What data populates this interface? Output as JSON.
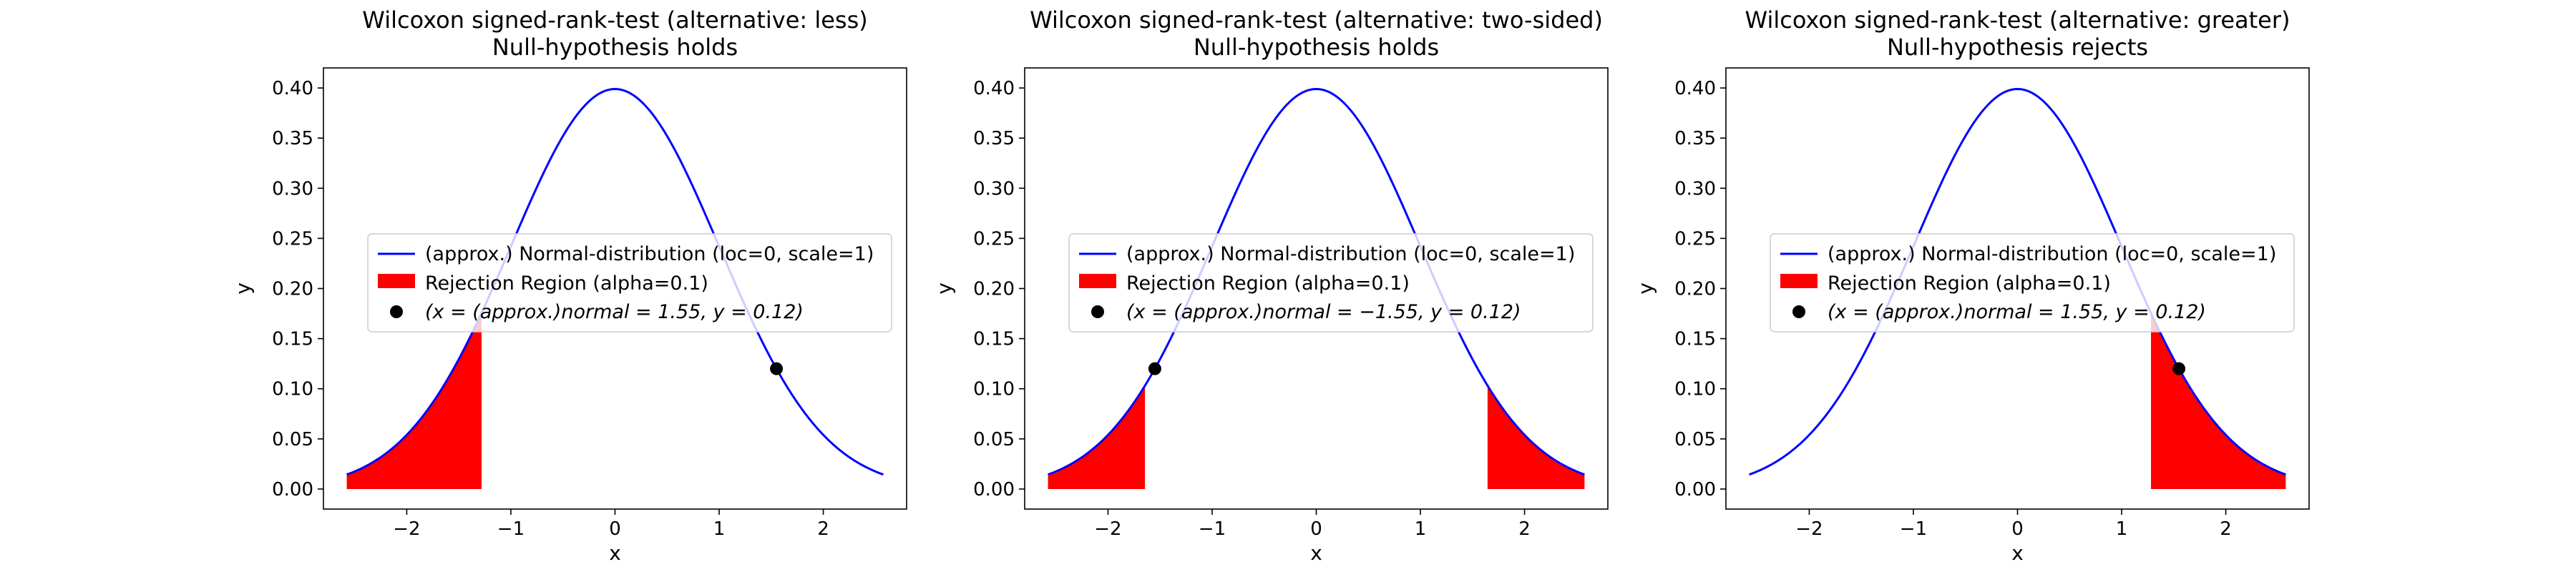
{
  "chart_data": [
    {
      "type": "line",
      "title": "Wilcoxon signed-rank-test (alternative: less)",
      "subtitle": "Null-hypothesis holds",
      "xlabel": "x",
      "ylabel": "y",
      "xlim": [
        -2.8,
        2.8
      ],
      "ylim": [
        -0.02,
        0.42
      ],
      "xticks": [
        -2,
        -1,
        0,
        1,
        2
      ],
      "xtick_labels": [
        "−2",
        "−1",
        "0",
        "1",
        "2"
      ],
      "yticks": [
        0.0,
        0.05,
        0.1,
        0.15,
        0.2,
        0.25,
        0.3,
        0.35,
        0.4
      ],
      "ytick_labels": [
        "0.00",
        "0.05",
        "0.10",
        "0.15",
        "0.20",
        "0.25",
        "0.30",
        "0.35",
        "0.40"
      ],
      "grid": false,
      "legend_position": "center",
      "series": [
        {
          "name": "(approx.) Normal-distribution (loc=0, scale=1)",
          "kind": "normal_pdf",
          "loc": 0,
          "scale": 1,
          "x_range": [
            -2.576,
            2.576
          ],
          "color": "#0000ff"
        }
      ],
      "rejection_region": {
        "name": "Rejection Region (alpha=0.1)",
        "intervals": [
          [
            -2.576,
            -1.2816
          ]
        ],
        "color": "#ff0000"
      },
      "point": {
        "name_math": "(x = (approx.)normal = 1.55, y = 0.12)",
        "x": 1.55,
        "y": 0.12,
        "color": "#000000"
      }
    },
    {
      "type": "line",
      "title": "Wilcoxon signed-rank-test (alternative: two-sided)",
      "subtitle": "Null-hypothesis holds",
      "xlabel": "x",
      "ylabel": "y",
      "xlim": [
        -2.8,
        2.8
      ],
      "ylim": [
        -0.02,
        0.42
      ],
      "xticks": [
        -2,
        -1,
        0,
        1,
        2
      ],
      "xtick_labels": [
        "−2",
        "−1",
        "0",
        "1",
        "2"
      ],
      "yticks": [
        0.0,
        0.05,
        0.1,
        0.15,
        0.2,
        0.25,
        0.3,
        0.35,
        0.4
      ],
      "ytick_labels": [
        "0.00",
        "0.05",
        "0.10",
        "0.15",
        "0.20",
        "0.25",
        "0.30",
        "0.35",
        "0.40"
      ],
      "grid": false,
      "legend_position": "center",
      "series": [
        {
          "name": "(approx.) Normal-distribution (loc=0, scale=1)",
          "kind": "normal_pdf",
          "loc": 0,
          "scale": 1,
          "x_range": [
            -2.576,
            2.576
          ],
          "color": "#0000ff"
        }
      ],
      "rejection_region": {
        "name": "Rejection Region (alpha=0.1)",
        "intervals": [
          [
            -2.576,
            -1.6449
          ],
          [
            1.6449,
            2.576
          ]
        ],
        "color": "#ff0000"
      },
      "point": {
        "name_math": "(x = (approx.)normal = −1.55, y = 0.12)",
        "x": -1.55,
        "y": 0.12,
        "color": "#000000"
      }
    },
    {
      "type": "line",
      "title": "Wilcoxon signed-rank-test (alternative: greater)",
      "subtitle": "Null-hypothesis rejects",
      "xlabel": "x",
      "ylabel": "y",
      "xlim": [
        -2.8,
        2.8
      ],
      "ylim": [
        -0.02,
        0.42
      ],
      "xticks": [
        -2,
        -1,
        0,
        1,
        2
      ],
      "xtick_labels": [
        "−2",
        "−1",
        "0",
        "1",
        "2"
      ],
      "yticks": [
        0.0,
        0.05,
        0.1,
        0.15,
        0.2,
        0.25,
        0.3,
        0.35,
        0.4
      ],
      "ytick_labels": [
        "0.00",
        "0.05",
        "0.10",
        "0.15",
        "0.20",
        "0.25",
        "0.30",
        "0.35",
        "0.40"
      ],
      "grid": false,
      "legend_position": "center",
      "series": [
        {
          "name": "(approx.) Normal-distribution (loc=0, scale=1)",
          "kind": "normal_pdf",
          "loc": 0,
          "scale": 1,
          "x_range": [
            -2.576,
            2.576
          ],
          "color": "#0000ff"
        }
      ],
      "rejection_region": {
        "name": "Rejection Region (alpha=0.1)",
        "intervals": [
          [
            1.2816,
            2.576
          ]
        ],
        "color": "#ff0000"
      },
      "point": {
        "name_math": "(x = (approx.)normal = 1.55, y = 0.12)",
        "x": 1.55,
        "y": 0.12,
        "color": "#000000"
      }
    }
  ]
}
